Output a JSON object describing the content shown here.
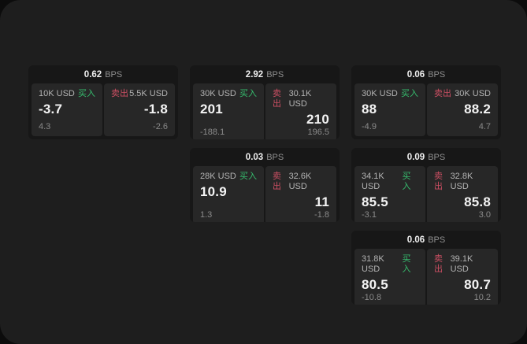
{
  "window": {
    "background": "#1e1e1e",
    "outer_background": "#0c0c0c"
  },
  "colors": {
    "buy_green": "#36bd6e",
    "sell_red": "#cc4f63",
    "card_background": "#171717",
    "panel_background": "#272727"
  },
  "labels": {
    "bps_unit": "BPS"
  },
  "cards": [
    {
      "row": 1,
      "col": 1,
      "bps": "0.62",
      "buy": {
        "amount": "10K USD",
        "side_label": "买入",
        "value": "-3.7",
        "sub": "4.3"
      },
      "sell": {
        "amount": "5.5K USD",
        "side_label": "卖出",
        "value": "-1.8",
        "sub": "-2.6"
      }
    },
    {
      "row": 1,
      "col": 2,
      "bps": "2.92",
      "buy": {
        "amount": "30K USD",
        "side_label": "买入",
        "value": "201",
        "sub": "-188.1"
      },
      "sell": {
        "amount": "30.1K USD",
        "side_label": "卖出",
        "value": "210",
        "sub": "196.5"
      }
    },
    {
      "row": 1,
      "col": 3,
      "bps": "0.06",
      "buy": {
        "amount": "30K USD",
        "side_label": "买入",
        "value": "88",
        "sub": "-4.9"
      },
      "sell": {
        "amount": "30K USD",
        "side_label": "卖出",
        "value": "88.2",
        "sub": "4.7"
      }
    },
    {
      "row": 2,
      "col": 2,
      "bps": "0.03",
      "buy": {
        "amount": "28K USD",
        "side_label": "买入",
        "value": "10.9",
        "sub": "1.3"
      },
      "sell": {
        "amount": "32.6K USD",
        "side_label": "卖出",
        "value": "11",
        "sub": "-1.8"
      }
    },
    {
      "row": 2,
      "col": 3,
      "bps": "0.09",
      "buy": {
        "amount": "34.1K USD",
        "side_label": "买入",
        "value": "85.5",
        "sub": "-3.1"
      },
      "sell": {
        "amount": "32.8K USD",
        "side_label": "卖出",
        "value": "85.8",
        "sub": "3.0"
      }
    },
    {
      "row": 3,
      "col": 3,
      "bps": "0.06",
      "buy": {
        "amount": "31.8K USD",
        "side_label": "买入",
        "value": "80.5",
        "sub": "-10.8"
      },
      "sell": {
        "amount": "39.1K USD",
        "side_label": "卖出",
        "value": "80.7",
        "sub": "10.2"
      }
    }
  ]
}
